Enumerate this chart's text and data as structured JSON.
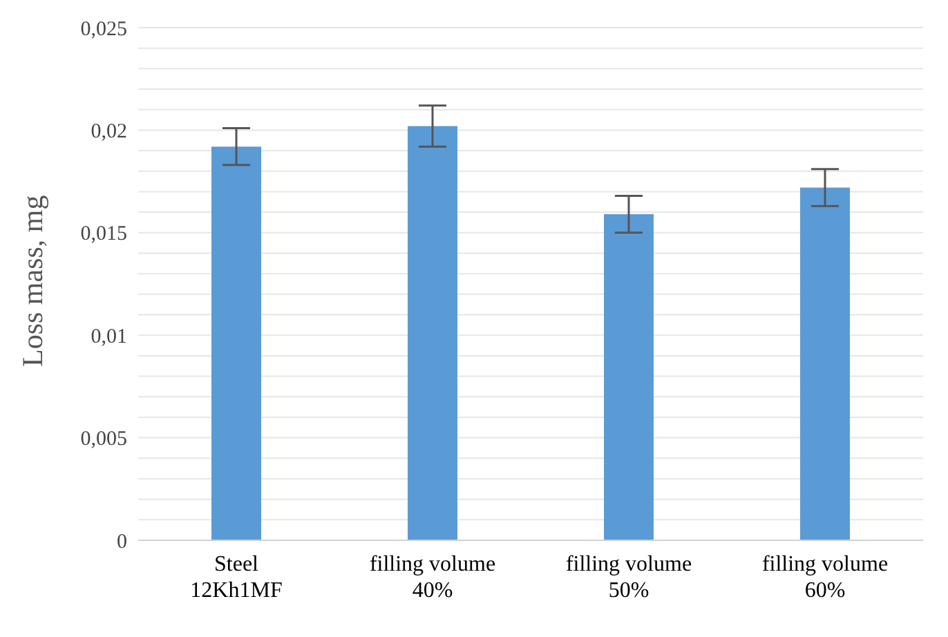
{
  "chart_data": {
    "type": "bar",
    "ylabel": "Loss mass, mg",
    "categories": [
      "Steel\n12Kh1MF",
      "filling volume\n40%",
      "filling volume\n50%",
      "filling volume\n60%"
    ],
    "values": [
      0.0192,
      0.0202,
      0.0159,
      0.0172
    ],
    "errors": [
      0.0009,
      0.001,
      0.0009,
      0.0009
    ],
    "color": "#5b9bd5",
    "ylim": [
      0,
      0.025
    ],
    "yticks": [
      {
        "value": 0,
        "label": "0"
      },
      {
        "value": 0.001,
        "label": null
      },
      {
        "value": 0.002,
        "label": null
      },
      {
        "value": 0.003,
        "label": null
      },
      {
        "value": 0.004,
        "label": null
      },
      {
        "value": 0.005,
        "label": "0,005"
      },
      {
        "value": 0.006,
        "label": null
      },
      {
        "value": 0.007,
        "label": null
      },
      {
        "value": 0.008,
        "label": null
      },
      {
        "value": 0.009,
        "label": null
      },
      {
        "value": 0.01,
        "label": "0,01"
      },
      {
        "value": 0.011,
        "label": null
      },
      {
        "value": 0.012,
        "label": null
      },
      {
        "value": 0.013,
        "label": null
      },
      {
        "value": 0.014,
        "label": null
      },
      {
        "value": 0.015,
        "label": "0,015"
      },
      {
        "value": 0.016,
        "label": null
      },
      {
        "value": 0.017,
        "label": null
      },
      {
        "value": 0.018,
        "label": null
      },
      {
        "value": 0.019,
        "label": null
      },
      {
        "value": 0.02,
        "label": "0,02"
      },
      {
        "value": 0.021,
        "label": null
      },
      {
        "value": 0.022,
        "label": null
      },
      {
        "value": 0.023,
        "label": null
      },
      {
        "value": 0.024,
        "label": null
      },
      {
        "value": 0.025,
        "label": "0,025"
      }
    ],
    "grid": "y",
    "legend": false
  }
}
